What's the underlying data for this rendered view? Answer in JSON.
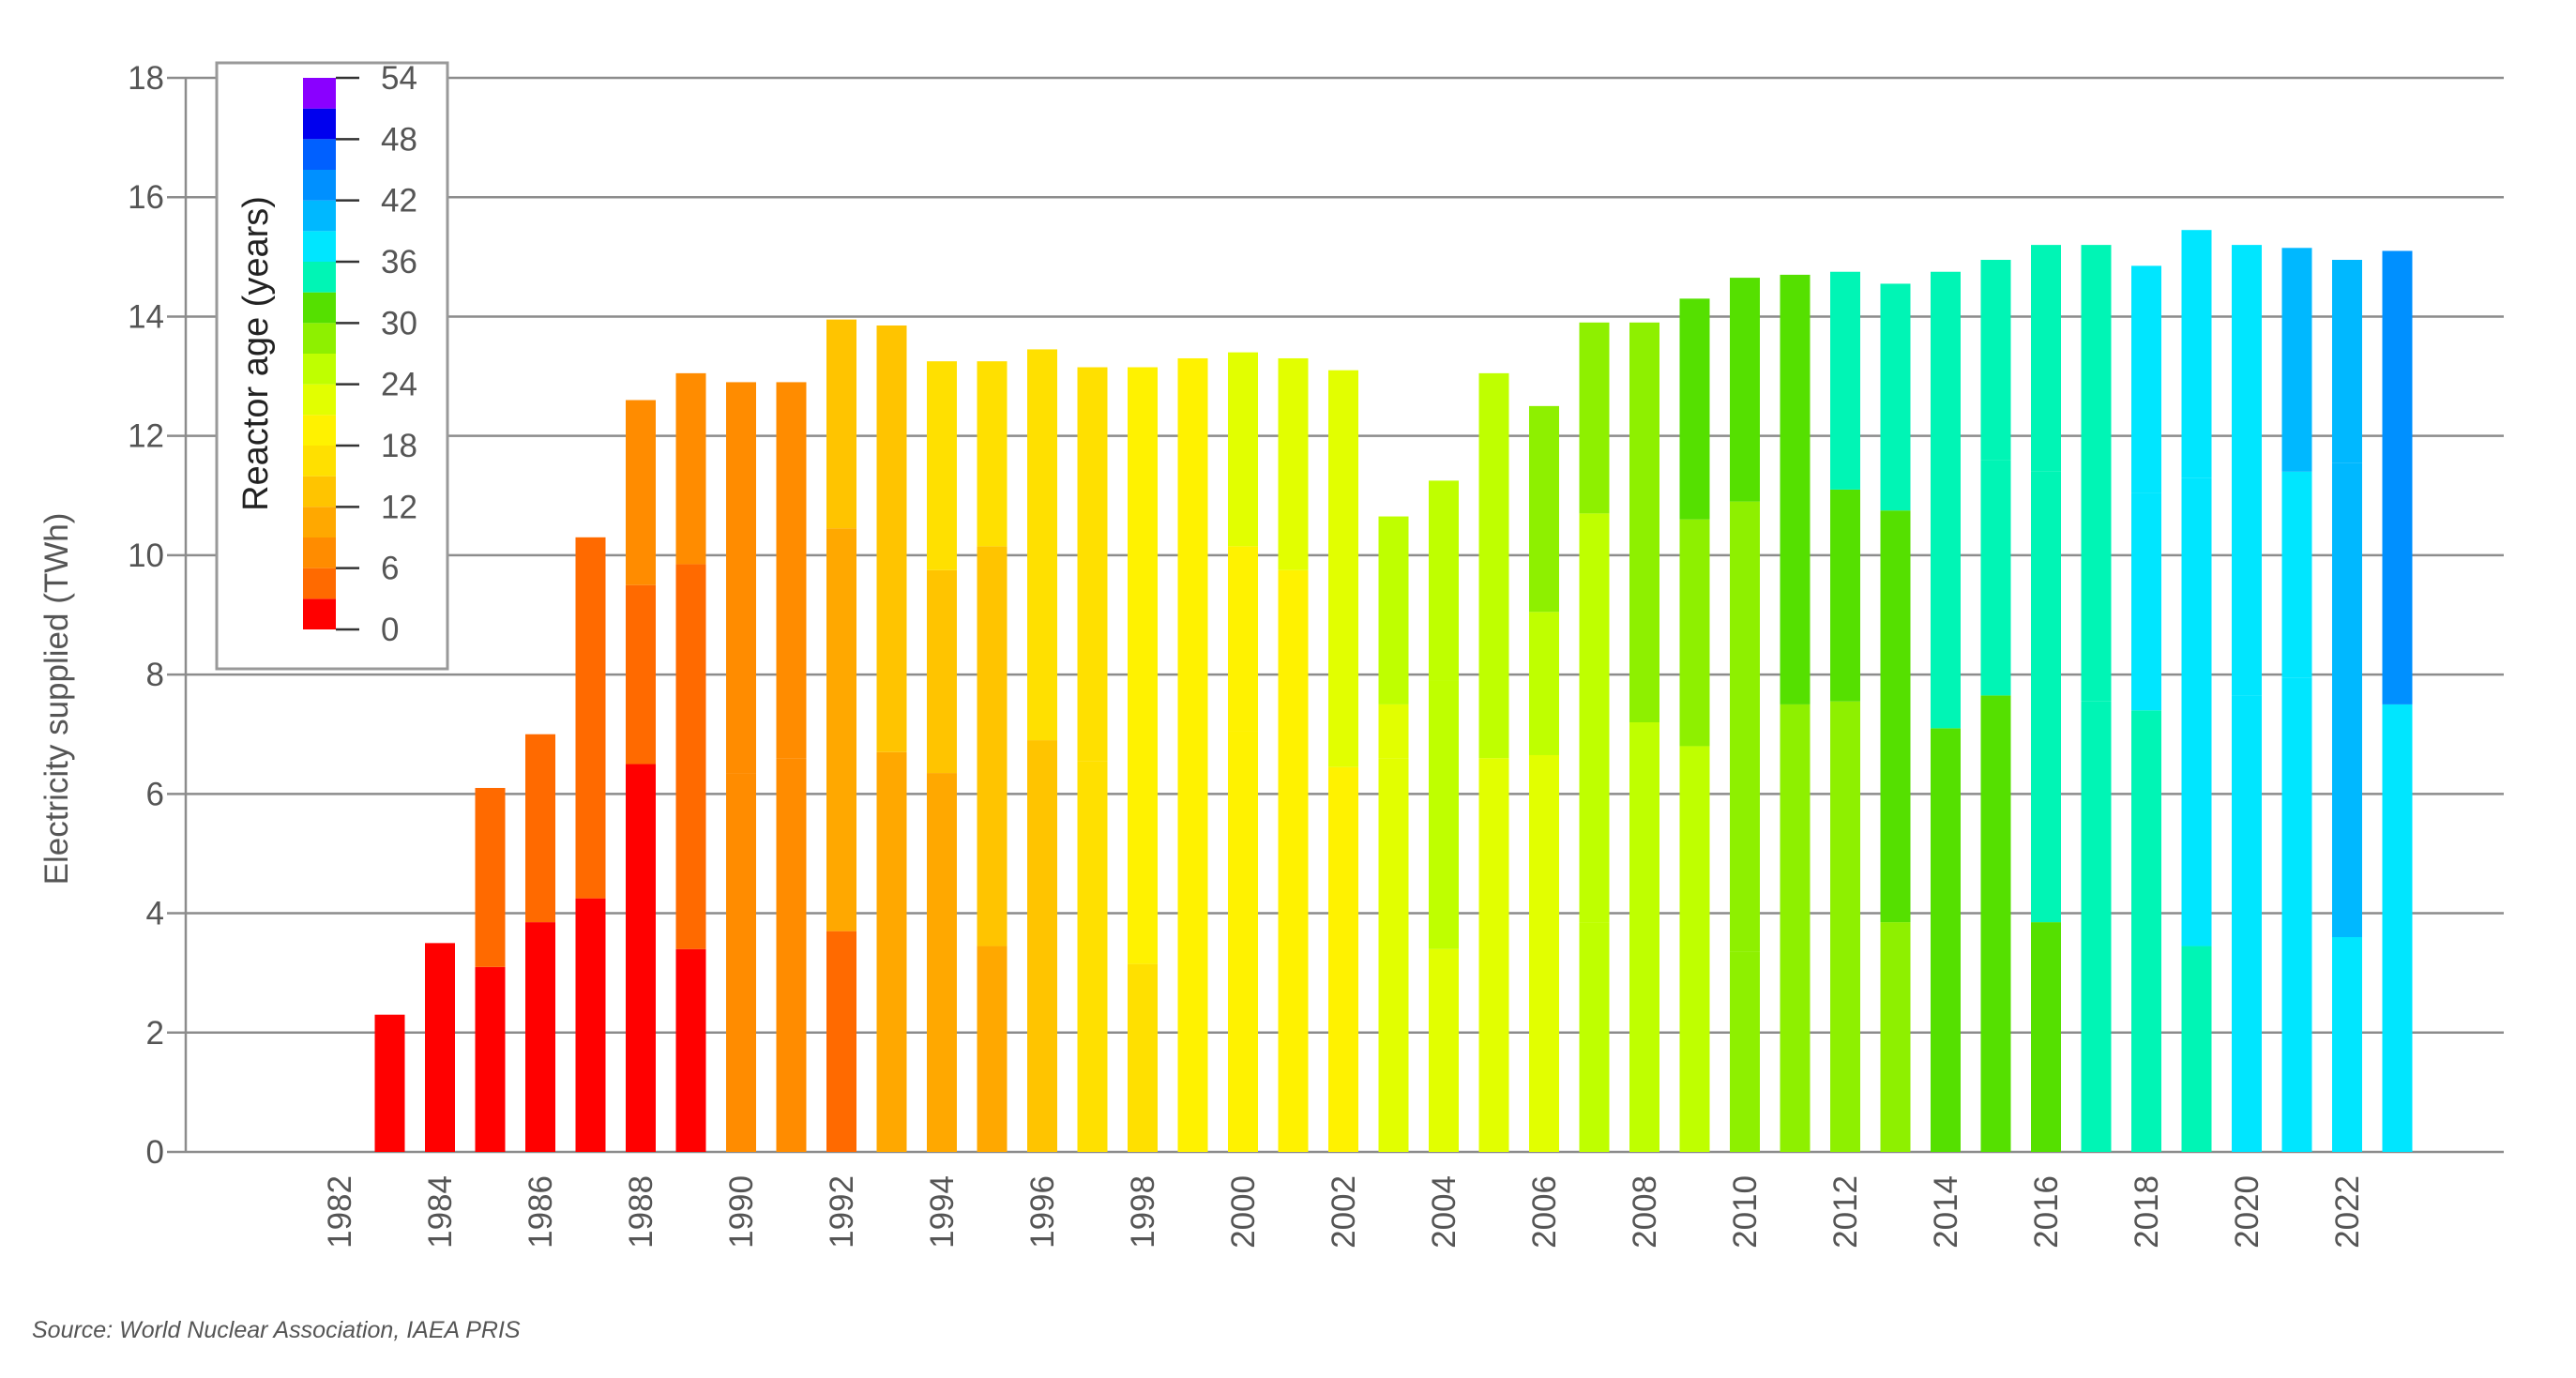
{
  "chart_data": {
    "type": "bar",
    "ylabel": "Electricity supplied (TWh)",
    "source": "Source: World Nuclear Association, IAEA PRIS",
    "categories": [
      "1982",
      null,
      "1984",
      null,
      "1986",
      null,
      "1988",
      null,
      "1990",
      null,
      "1992",
      null,
      "1994",
      null,
      "1996",
      null,
      "1998",
      null,
      "2000",
      null,
      "2002",
      null,
      "2004",
      null,
      "2006",
      null,
      "2008",
      null,
      "2010",
      null,
      "2012",
      null,
      "2014",
      null,
      "2016",
      null,
      "2018",
      null,
      "2020",
      null,
      "2022",
      null
    ],
    "stacks": [
      {
        "values": [],
        "ages": []
      },
      {
        "values": [
          2.3
        ],
        "ages": [
          0
        ]
      },
      {
        "values": [
          3.5
        ],
        "ages": [
          1
        ]
      },
      {
        "values": [
          3.1,
          3.0
        ],
        "ages": [
          0,
          3
        ]
      },
      {
        "values": [
          3.85,
          3.15
        ],
        "ages": [
          1,
          4
        ]
      },
      {
        "values": [
          4.25,
          6.05
        ],
        "ages": [
          2,
          5
        ]
      },
      {
        "values": [
          6.5,
          3.0,
          3.1
        ],
        "ages": [
          0,
          4,
          7
        ]
      },
      {
        "values": [
          3.4,
          6.45,
          3.2
        ],
        "ages": [
          1,
          5,
          8
        ]
      },
      {
        "values": [
          6.35,
          6.55
        ],
        "ages": [
          6,
          7
        ]
      },
      {
        "values": [
          6.6,
          6.3
        ],
        "ages": [
          6,
          7
        ]
      },
      {
        "values": [
          3.7,
          6.75,
          3.5
        ],
        "ages": [
          4,
          9,
          12
        ]
      },
      {
        "values": [
          6.7,
          7.15
        ],
        "ages": [
          9,
          12
        ]
      },
      {
        "values": [
          6.35,
          3.4,
          3.5
        ],
        "ages": [
          10,
          12,
          15
        ]
      },
      {
        "values": [
          3.45,
          6.7,
          3.1
        ],
        "ages": [
          10,
          12,
          15
        ]
      },
      {
        "values": [
          6.9,
          6.55
        ],
        "ages": [
          14,
          16
        ]
      },
      {
        "values": [
          6.55,
          6.6
        ],
        "ages": [
          15,
          17
        ]
      },
      {
        "values": [
          3.15,
          10.0
        ],
        "ages": [
          16,
          18
        ]
      },
      {
        "values": [
          13.3
        ],
        "ages": [
          18
        ]
      },
      {
        "values": [
          7.05,
          3.1,
          3.25
        ],
        "ages": [
          18,
          19,
          21
        ]
      },
      {
        "values": [
          9.75,
          3.55
        ],
        "ages": [
          19,
          22
        ]
      },
      {
        "values": [
          6.45,
          6.65
        ],
        "ages": [
          20,
          22
        ]
      },
      {
        "values": [
          6.6,
          0.9,
          3.15
        ],
        "ages": [
          21,
          23,
          24
        ]
      },
      {
        "values": [
          3.4,
          4.5,
          3.35
        ],
        "ages": [
          22,
          24,
          25
        ]
      },
      {
        "values": [
          6.6,
          6.45
        ],
        "ages": [
          23,
          25
        ]
      },
      {
        "values": [
          6.65,
          2.4,
          3.45
        ],
        "ages": [
          23,
          25,
          27
        ]
      },
      {
        "values": [
          3.85,
          6.85,
          3.2
        ],
        "ages": [
          24,
          25,
          27
        ]
      },
      {
        "values": [
          7.2,
          6.7
        ],
        "ages": [
          25,
          28
        ]
      },
      {
        "values": [
          6.8,
          3.8,
          3.7
        ],
        "ages": [
          26,
          28,
          30
        ]
      },
      {
        "values": [
          3.35,
          7.55,
          3.75
        ],
        "ages": [
          27,
          28,
          30
        ]
      },
      {
        "values": [
          7.5,
          7.2
        ],
        "ages": [
          28,
          31
        ]
      },
      {
        "values": [
          7.55,
          3.55,
          3.65
        ],
        "ages": [
          28,
          31,
          33
        ]
      },
      {
        "values": [
          3.85,
          6.9,
          3.8
        ],
        "ages": [
          29,
          31,
          33
        ]
      },
      {
        "values": [
          7.1,
          7.65
        ],
        "ages": [
          32,
          33
        ]
      },
      {
        "values": [
          7.65,
          3.95,
          3.35
        ],
        "ages": [
          32,
          33,
          34
        ]
      },
      {
        "values": [
          3.85,
          7.55,
          3.8
        ],
        "ages": [
          32,
          34,
          35
        ]
      },
      {
        "values": [
          7.55,
          7.65
        ],
        "ages": [
          34,
          35
        ]
      },
      {
        "values": [
          7.4,
          3.65,
          3.8
        ],
        "ages": [
          35,
          36,
          37
        ]
      },
      {
        "values": [
          3.45,
          7.85,
          4.15
        ],
        "ages": [
          34,
          36,
          37
        ]
      },
      {
        "values": [
          7.65,
          7.55
        ],
        "ages": [
          37,
          38
        ]
      },
      {
        "values": [
          7.95,
          3.45,
          3.75
        ],
        "ages": [
          37,
          38,
          40
        ]
      },
      {
        "values": [
          3.6,
          7.95,
          3.4
        ],
        "ages": [
          37,
          39,
          40
        ]
      },
      {
        "values": [
          7.5,
          7.6
        ],
        "ages": [
          38,
          42
        ]
      }
    ],
    "ylim": [
      0,
      18
    ],
    "yticks": [
      0,
      2,
      4,
      6,
      8,
      10,
      12,
      14,
      16,
      18
    ],
    "grid": true,
    "colorbar": {
      "label": "Reactor age (years)",
      "lim": [
        0,
        54
      ],
      "ticks": [
        0,
        6,
        12,
        18,
        24,
        30,
        36,
        42,
        48,
        54
      ],
      "colors": [
        "#ff0000",
        "#ff6a00",
        "#ff8c00",
        "#ffa800",
        "#ffc400",
        "#ffe000",
        "#fff200",
        "#e2ff00",
        "#bfff00",
        "#8ef000",
        "#55e000",
        "#00f5b5",
        "#00e6ff",
        "#00b8ff",
        "#0090ff",
        "#0060ff",
        "#0000ee",
        "#8a00ff"
      ],
      "position": "upper left"
    }
  }
}
